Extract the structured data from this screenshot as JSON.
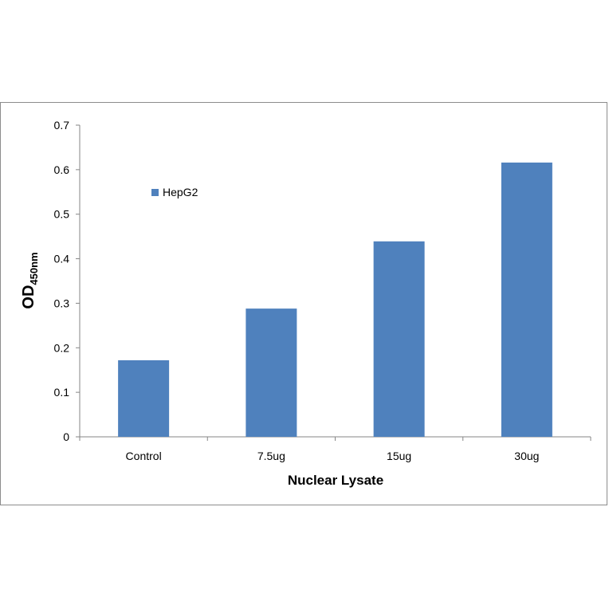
{
  "chart_data": {
    "type": "bar",
    "categories": [
      "Control",
      "7.5ug",
      "15ug",
      "30ug"
    ],
    "series": [
      {
        "name": "HepG2",
        "color": "#4f81bd",
        "values": [
          0.172,
          0.288,
          0.439,
          0.616
        ]
      }
    ],
    "ylim": [
      0,
      0.7
    ],
    "yticks": [
      0,
      0.1,
      0.2,
      0.3,
      0.4,
      0.5,
      0.6,
      0.7
    ],
    "ytick_labels": [
      "0",
      "0.1",
      "0.2",
      "0.3",
      "0.4",
      "0.5",
      "0.6",
      "0.7"
    ],
    "xlabel": "Nuclear Lysate",
    "ylabel_main": "OD",
    "ylabel_sub": "450nm",
    "legend_position": "top-left-inside",
    "grid": false
  }
}
